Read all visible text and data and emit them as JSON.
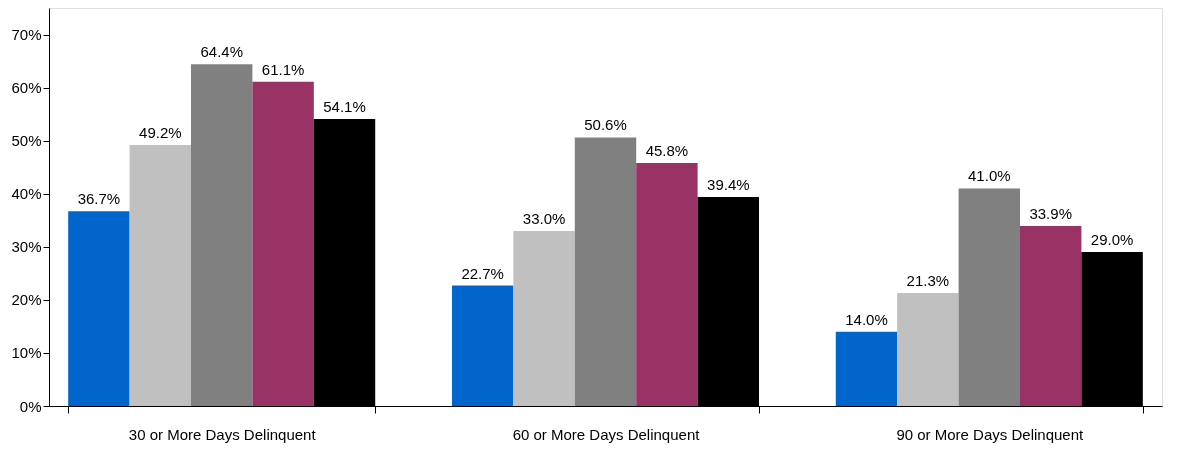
{
  "chart_data": {
    "type": "bar",
    "categories": [
      "30 or More Days Delinquent",
      "60 or More Days Delinquent",
      "90 or More Days Delinquent"
    ],
    "series": [
      {
        "color": "#0066cc",
        "values": [
          36.7,
          22.7,
          14.0
        ],
        "value_labels": [
          "36.7%",
          "22.7%",
          "14.0%"
        ]
      },
      {
        "color": "#c0c0c0",
        "values": [
          49.2,
          33.0,
          21.3
        ],
        "value_labels": [
          "49.2%",
          "33.0%",
          "21.3%"
        ]
      },
      {
        "color": "#808080",
        "values": [
          64.4,
          50.6,
          41.0
        ],
        "value_labels": [
          "64.4%",
          "50.6%",
          "41.0%"
        ]
      },
      {
        "color": "#993366",
        "values": [
          61.1,
          45.8,
          33.9
        ],
        "value_labels": [
          "61.1%",
          "45.8%",
          "33.9%"
        ]
      },
      {
        "color": "#000000",
        "values": [
          54.1,
          39.4,
          29.0
        ],
        "value_labels": [
          "54.1%",
          "39.4%",
          "29.0%"
        ]
      }
    ],
    "ylim": [
      0,
      75
    ],
    "yticks": [
      {
        "value": 0,
        "label": "0%"
      },
      {
        "value": 10,
        "label": "10%"
      },
      {
        "value": 20,
        "label": "20%"
      },
      {
        "value": 30,
        "label": "30%"
      },
      {
        "value": 40,
        "label": "40%"
      },
      {
        "value": 50,
        "label": "50%"
      },
      {
        "value": 60,
        "label": "60%"
      },
      {
        "value": 70,
        "label": "70%"
      }
    ],
    "grid": false,
    "legend": false
  }
}
